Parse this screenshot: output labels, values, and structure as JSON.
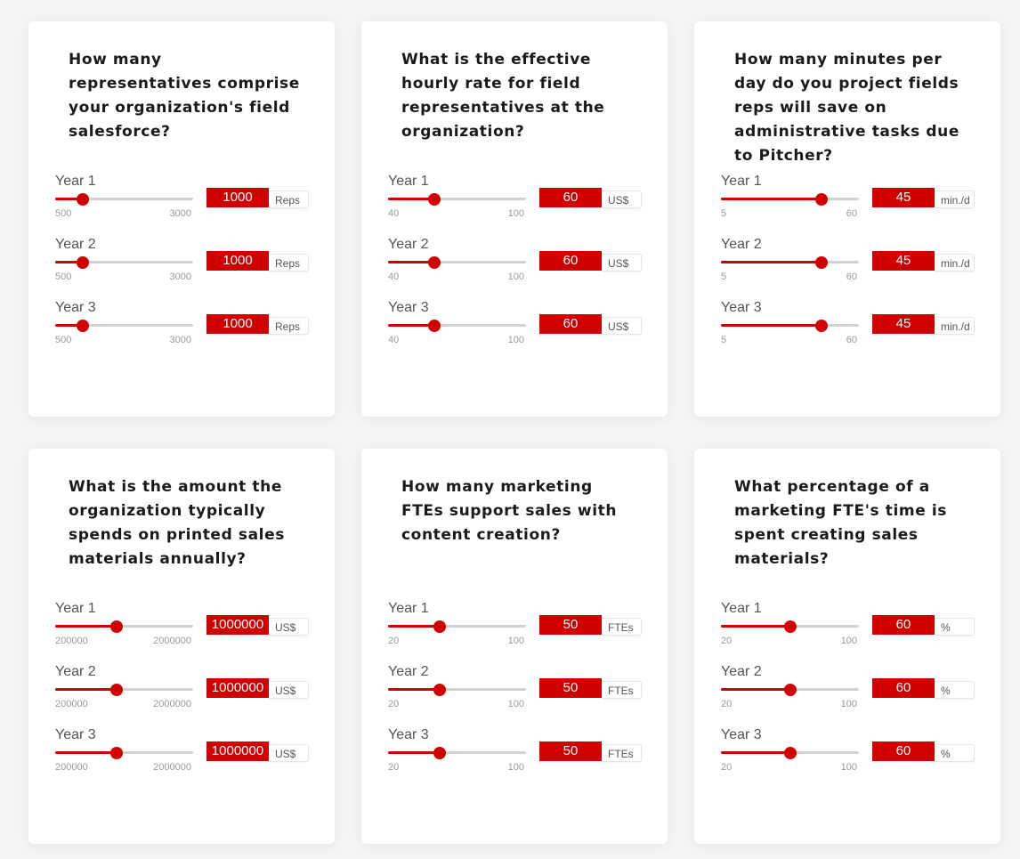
{
  "cards": [
    {
      "question": "How many representatives comprise your organization's field salesforce?",
      "unit": "Reps",
      "min_label": "500",
      "max_label": "3000",
      "min": 500,
      "max": 3000,
      "years": [
        {
          "label": "Year 1",
          "value": "1000"
        },
        {
          "label": "Year 2",
          "value": "1000"
        },
        {
          "label": "Year 3",
          "value": "1000"
        }
      ]
    },
    {
      "question": "What is the effective hourly rate for field representatives at the organization?",
      "unit": "US$",
      "min_label": "40",
      "max_label": "100",
      "min": 40,
      "max": 100,
      "years": [
        {
          "label": "Year 1",
          "value": "60"
        },
        {
          "label": "Year 2",
          "value": "60"
        },
        {
          "label": "Year 3",
          "value": "60"
        }
      ]
    },
    {
      "question": "How many minutes per day do you project fields reps will save on administrative tasks due to Pitcher?",
      "unit": "min./d",
      "min_label": "5",
      "max_label": "60",
      "min": 5,
      "max": 60,
      "years": [
        {
          "label": "Year 1",
          "value": "45"
        },
        {
          "label": "Year 2",
          "value": "45"
        },
        {
          "label": "Year 3",
          "value": "45"
        }
      ]
    },
    {
      "question": "What is the amount the organization typically spends on printed sales materials annually?",
      "unit": "US$",
      "min_label": "200000",
      "max_label": "2000000",
      "min": 200000,
      "max": 2000000,
      "years": [
        {
          "label": "Year 1",
          "value": "1000000"
        },
        {
          "label": "Year 2",
          "value": "1000000"
        },
        {
          "label": "Year 3",
          "value": "1000000"
        }
      ]
    },
    {
      "question": "How many marketing FTEs support sales with content creation?",
      "unit": "FTEs",
      "min_label": "20",
      "max_label": "100",
      "min": 20,
      "max": 100,
      "years": [
        {
          "label": "Year 1",
          "value": "50"
        },
        {
          "label": "Year 2",
          "value": "50"
        },
        {
          "label": "Year 3",
          "value": "50"
        }
      ]
    },
    {
      "question": "What percentage of a marketing FTE's time is spent creating sales materials?",
      "unit": "%",
      "min_label": "20",
      "max_label": "100",
      "min": 20,
      "max": 100,
      "years": [
        {
          "label": "Year 1",
          "value": "60"
        },
        {
          "label": "Year 2",
          "value": "60"
        },
        {
          "label": "Year 3",
          "value": "60"
        }
      ]
    }
  ],
  "colors": {
    "accent": "#d10000",
    "track": "#d2d2d2",
    "card": "#ffffff",
    "background": "#f4f4f4"
  }
}
